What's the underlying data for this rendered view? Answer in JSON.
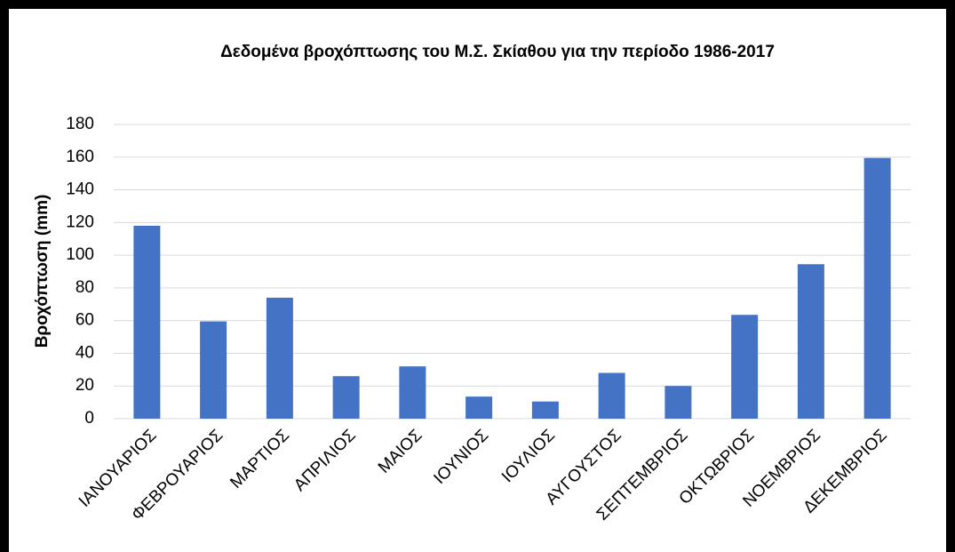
{
  "chart_data": {
    "type": "bar",
    "title": "Δεδομένα βροχόπτωσης του Μ.Σ. Σκίαθου για την περίοδο 1986-2017",
    "y_label": "Βροχόπτωση (mm)",
    "categories": [
      "ΙΑΝΟΥΑΡΙΟΣ",
      "ΦΕΒΡΟΥΑΡΙΟΣ",
      "ΜΑΡΤΙΟΣ",
      "ΑΠΡΙΛΙΟΣ",
      "ΜΑΙΟΣ",
      "ΙΟΥΝΙΟΣ",
      "ΙΟΥΛΙΟΣ",
      "ΑΥΓΟΥΣΤΟΣ",
      "ΣΕΠΤΕΜΒΡΙΟΣ",
      "ΟΚΤΩΒΡΙΟΣ",
      "ΝΟΕΜΒΡΙΟΣ",
      "ΔΕΚΕΜΒΡΙΟΣ"
    ],
    "values": [
      118,
      59.5,
      74,
      26,
      32,
      13.5,
      10.5,
      28,
      20,
      63.5,
      94.5,
      159.5
    ],
    "color": "#4472c4",
    "ylim": [
      0,
      180
    ],
    "yticks": [
      0,
      20,
      40,
      60,
      80,
      100,
      120,
      140,
      160,
      180
    ],
    "grid": true
  }
}
